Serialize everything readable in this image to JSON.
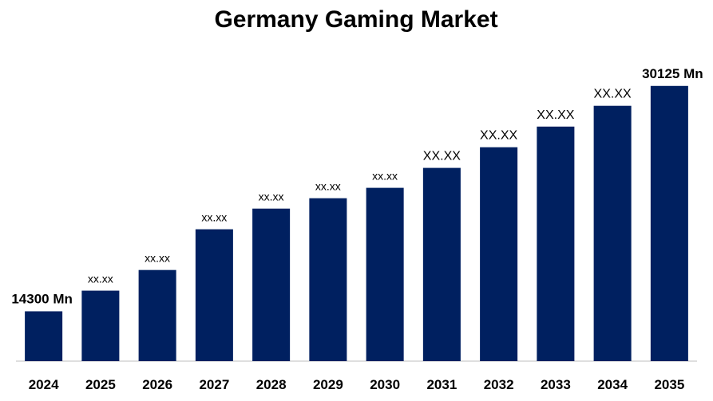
{
  "chart_data": {
    "type": "bar",
    "title": "Germany Gaming Market",
    "categories": [
      "2024",
      "2025",
      "2026",
      "2027",
      "2028",
      "2029",
      "2030",
      "2031",
      "2032",
      "2033",
      "2034",
      "2035"
    ],
    "values": [
      14300,
      15750,
      17200,
      20060,
      21510,
      22240,
      22970,
      24370,
      25820,
      27270,
      28730,
      30125
    ],
    "value_labels": [
      "14300 Mn",
      "xx.xx",
      "xx.xx",
      "xx.xx",
      "xx.xx",
      "xx.xx",
      "xx.xx",
      "XX.XX",
      "XX.XX",
      "XX.XX",
      "XX.XX",
      "30125 Mn"
    ],
    "color": "#002060",
    "ylim": [
      10800,
      32800
    ]
  }
}
